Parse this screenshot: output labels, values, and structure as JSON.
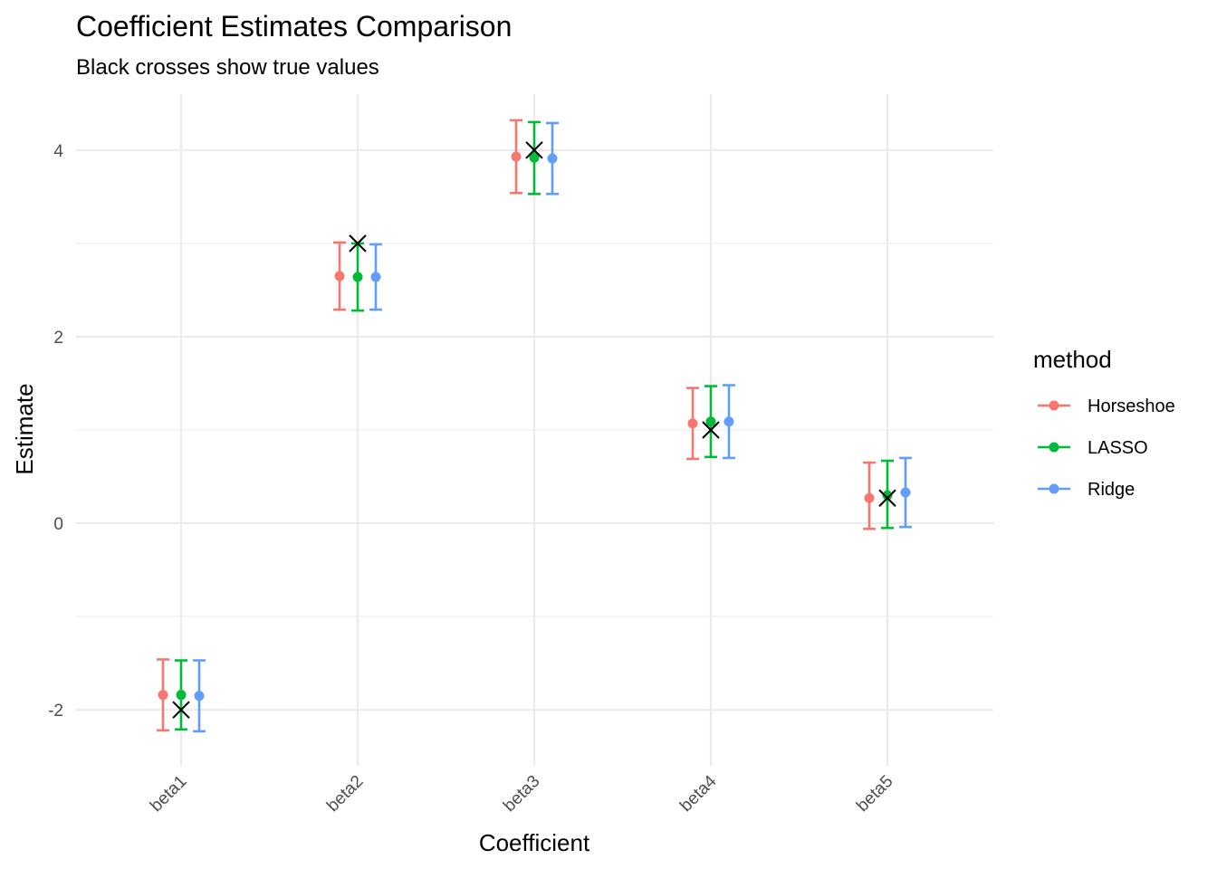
{
  "chart_data": {
    "type": "scatter",
    "title": "Coefficient Estimates Comparison",
    "subtitle": "Black crosses show true values",
    "xlabel": "Coefficient",
    "ylabel": "Estimate",
    "categories": [
      "beta1",
      "beta2",
      "beta3",
      "beta4",
      "beta5"
    ],
    "yticks": [
      -2,
      0,
      2,
      4
    ],
    "ylim": [
      -2.6,
      4.6
    ],
    "grid": true,
    "legend": {
      "title": "method",
      "position": "right"
    },
    "series": [
      {
        "name": "Horseshoe",
        "color": "#f8766d",
        "estimate": [
          -1.84,
          2.65,
          3.93,
          1.07,
          0.27
        ],
        "lower": [
          -2.22,
          2.29,
          3.54,
          0.69,
          -0.06
        ],
        "upper": [
          -1.46,
          3.01,
          4.32,
          1.45,
          0.65
        ]
      },
      {
        "name": "LASSO",
        "color": "#00ba38",
        "estimate": [
          -1.84,
          2.64,
          3.92,
          1.09,
          0.3
        ],
        "lower": [
          -2.21,
          2.28,
          3.53,
          0.71,
          -0.05
        ],
        "upper": [
          -1.47,
          3.0,
          4.3,
          1.47,
          0.67
        ]
      },
      {
        "name": "Ridge",
        "color": "#619cff",
        "estimate": [
          -1.85,
          2.64,
          3.91,
          1.09,
          0.33
        ],
        "lower": [
          -2.23,
          2.29,
          3.53,
          0.7,
          -0.04
        ],
        "upper": [
          -1.47,
          2.99,
          4.29,
          1.48,
          0.7
        ]
      }
    ],
    "true_values": [
      -2,
      3,
      4,
      1,
      0.27
    ]
  }
}
